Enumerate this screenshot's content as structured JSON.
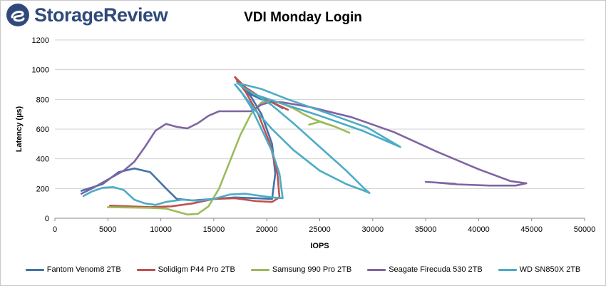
{
  "brand": {
    "name": "StorageReview",
    "logo_icon": "storagereview-logo-icon"
  },
  "chart_data": {
    "type": "line",
    "title": "VDI Monday Login",
    "xlabel": "IOPS",
    "ylabel": "Latency (µs)",
    "xlim": [
      0,
      50000
    ],
    "ylim": [
      0,
      1200
    ],
    "xticks": [
      "0",
      "5000",
      "10000",
      "15000",
      "20000",
      "25000",
      "30000",
      "35000",
      "40000",
      "45000",
      "50000"
    ],
    "yticks": [
      "0",
      "200",
      "400",
      "600",
      "800",
      "1000",
      "1200"
    ],
    "grid": "horizontal",
    "legend": "bottom",
    "series": [
      {
        "name": "Fantom Venom8 2TB",
        "color": "#4472a8",
        "points": [
          [
            2500,
            185
          ],
          [
            4500,
            230
          ],
          [
            6000,
            310
          ],
          [
            7500,
            335
          ],
          [
            9000,
            310
          ],
          [
            10500,
            200
          ],
          [
            11500,
            130
          ],
          [
            13000,
            120
          ],
          [
            15000,
            130
          ],
          [
            17000,
            140
          ],
          [
            19000,
            135
          ],
          [
            20500,
            130
          ],
          [
            20800,
            300
          ],
          [
            20500,
            500
          ],
          [
            19500,
            700
          ],
          [
            18500,
            820
          ],
          [
            17200,
            920
          ],
          [
            17800,
            880
          ],
          [
            18600,
            830
          ],
          [
            19500,
            800
          ],
          [
            20500,
            780
          ],
          [
            21500,
            740
          ]
        ]
      },
      {
        "name": "Solidigm P44 Pro 2TB",
        "color": "#c0504d",
        "points": [
          [
            5200,
            85
          ],
          [
            7000,
            80
          ],
          [
            9000,
            75
          ],
          [
            11000,
            80
          ],
          [
            13000,
            100
          ],
          [
            15000,
            130
          ],
          [
            17000,
            135
          ],
          [
            19000,
            115
          ],
          [
            20500,
            110
          ],
          [
            21200,
            140
          ],
          [
            21000,
            300
          ],
          [
            20300,
            500
          ],
          [
            19200,
            700
          ],
          [
            18000,
            850
          ],
          [
            17000,
            950
          ],
          [
            18000,
            880
          ],
          [
            19500,
            810
          ],
          [
            20800,
            770
          ],
          [
            22000,
            730
          ]
        ]
      },
      {
        "name": "Samsung 990 Pro 2TB",
        "color": "#9bbb59",
        "points": [
          [
            5000,
            75
          ],
          [
            7000,
            72
          ],
          [
            9000,
            70
          ],
          [
            10500,
            65
          ],
          [
            11500,
            45
          ],
          [
            12500,
            25
          ],
          [
            13500,
            30
          ],
          [
            14500,
            80
          ],
          [
            15500,
            200
          ],
          [
            16500,
            380
          ],
          [
            17500,
            560
          ],
          [
            18500,
            700
          ],
          [
            19500,
            780
          ],
          [
            20500,
            790
          ],
          [
            21500,
            770
          ],
          [
            22500,
            740
          ],
          [
            23500,
            700
          ],
          [
            24500,
            665
          ],
          [
            25500,
            640
          ],
          [
            26500,
            615
          ],
          [
            27800,
            575
          ],
          [
            26500,
            615
          ],
          [
            25000,
            650
          ],
          [
            24000,
            630
          ]
        ]
      },
      {
        "name": "Seagate Firecuda 530 2TB",
        "color": "#8064a2",
        "points": [
          [
            2500,
            165
          ],
          [
            3500,
            200
          ],
          [
            5000,
            260
          ],
          [
            6500,
            320
          ],
          [
            7500,
            380
          ],
          [
            8500,
            480
          ],
          [
            9500,
            590
          ],
          [
            10500,
            635
          ],
          [
            11500,
            615
          ],
          [
            12500,
            605
          ],
          [
            13500,
            640
          ],
          [
            14500,
            690
          ],
          [
            15500,
            720
          ],
          [
            17000,
            720
          ],
          [
            18500,
            720
          ],
          [
            19500,
            765
          ],
          [
            20500,
            785
          ],
          [
            21500,
            780
          ],
          [
            24000,
            750
          ],
          [
            28000,
            680
          ],
          [
            32000,
            580
          ],
          [
            36000,
            450
          ],
          [
            40000,
            330
          ],
          [
            43000,
            250
          ],
          [
            44500,
            235
          ],
          [
            43500,
            220
          ],
          [
            41000,
            220
          ],
          [
            38000,
            228
          ],
          [
            36000,
            240
          ],
          [
            35000,
            245
          ],
          [
            37800,
            232
          ]
        ]
      },
      {
        "name": "WD SN850X 2TB",
        "color": "#4bacc6",
        "points": [
          [
            2700,
            150
          ],
          [
            3500,
            180
          ],
          [
            4500,
            205
          ],
          [
            5500,
            210
          ],
          [
            6500,
            190
          ],
          [
            7500,
            125
          ],
          [
            8500,
            100
          ],
          [
            9500,
            90
          ],
          [
            10500,
            110
          ],
          [
            12000,
            125
          ],
          [
            13500,
            118
          ],
          [
            15000,
            130
          ],
          [
            16500,
            160
          ],
          [
            18000,
            165
          ],
          [
            19500,
            150
          ],
          [
            20500,
            140
          ],
          [
            21500,
            135
          ],
          [
            21200,
            300
          ],
          [
            20500,
            450
          ],
          [
            19500,
            600
          ],
          [
            18500,
            750
          ],
          [
            17600,
            850
          ],
          [
            17000,
            900
          ],
          [
            17800,
            830
          ],
          [
            19000,
            720
          ],
          [
            20500,
            600
          ],
          [
            22500,
            460
          ],
          [
            25000,
            320
          ],
          [
            27500,
            230
          ],
          [
            29200,
            185
          ],
          [
            29700,
            170
          ],
          [
            29200,
            200
          ],
          [
            27500,
            320
          ],
          [
            25000,
            480
          ],
          [
            22500,
            640
          ],
          [
            20500,
            760
          ],
          [
            19000,
            830
          ],
          [
            18000,
            870
          ],
          [
            17200,
            910
          ],
          [
            19500,
            870
          ],
          [
            22000,
            800
          ],
          [
            26000,
            700
          ],
          [
            29500,
            610
          ],
          [
            32600,
            480
          ],
          [
            29000,
            590
          ],
          [
            25000,
            690
          ],
          [
            21500,
            770
          ],
          [
            19000,
            830
          ]
        ]
      }
    ]
  }
}
